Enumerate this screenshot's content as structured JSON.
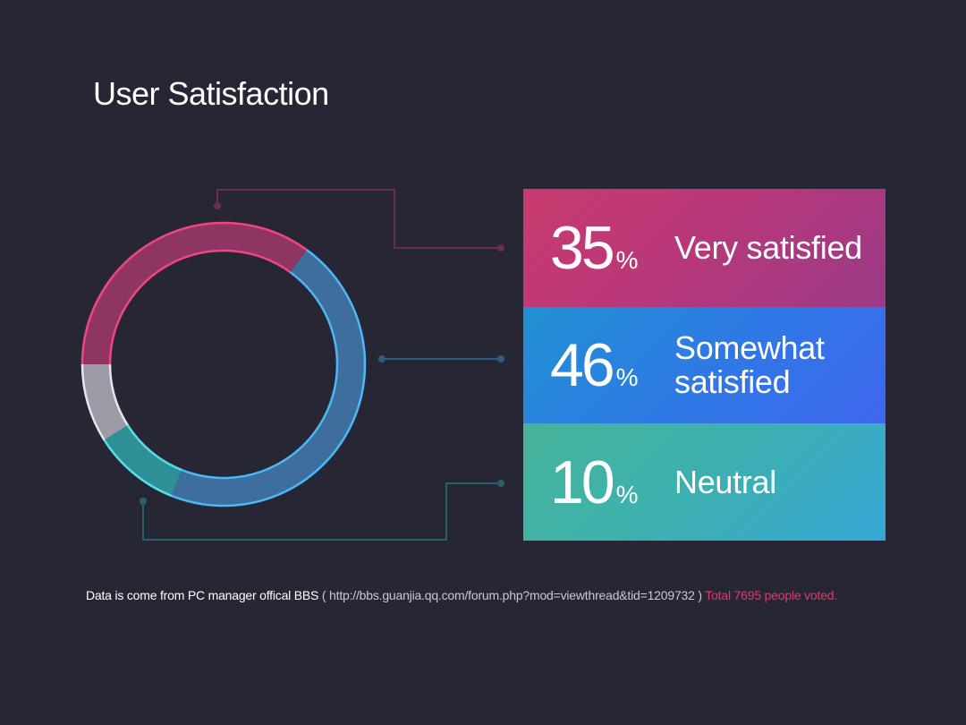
{
  "title": "User Satisfaction",
  "cards": [
    {
      "value": "35",
      "unit": "%",
      "label": "Very satisfied"
    },
    {
      "value": "46",
      "unit": "%",
      "label": "Somewhat\nsatisfied"
    },
    {
      "value": "10",
      "unit": "%",
      "label": "Neutral"
    }
  ],
  "footer": {
    "source_text": "Data is come from PC manager offical BBS",
    "url_text": "( http://bbs.guanjia.qq.com/forum.php?mod=viewthread&tid=1209732 )",
    "total_text": "Total 7695 people voted."
  },
  "colors": {
    "background": "#272635",
    "very_satisfied": "#c83a6e",
    "somewhat_satisfied": "#2f78e6",
    "neutral": "#3cb0b0",
    "other": "#b8b8c2",
    "footer_accent": "#e4366f"
  },
  "chart_data": {
    "type": "pie",
    "style": "donut",
    "title": "User Satisfaction",
    "categories": [
      "Very satisfied",
      "Somewhat satisfied",
      "Neutral",
      ""
    ],
    "values": [
      35,
      46,
      10,
      9
    ],
    "unit": "%",
    "total_votes": 7695,
    "segment_colors": [
      "#c83a6e",
      "#3a7fb8",
      "#2fa5a5",
      "#a6a6b2"
    ]
  }
}
